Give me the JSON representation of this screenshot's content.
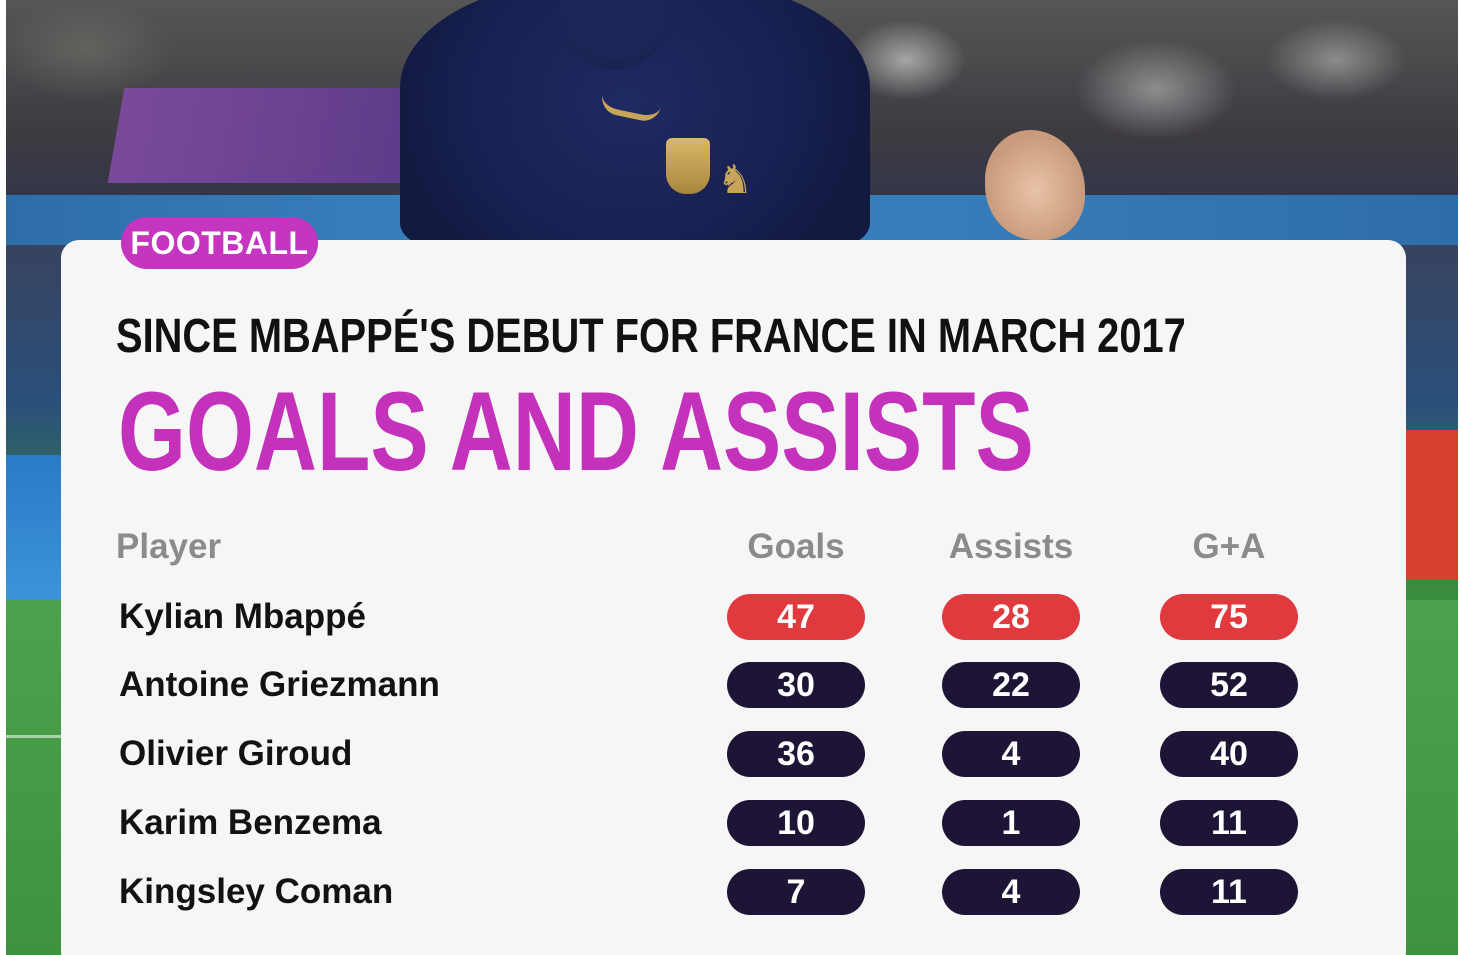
{
  "tag": "FOOTBALL",
  "subtitle": "SINCE MBAPPÉ'S DEBUT FOR FRANCE IN MARCH 2017",
  "title": "GOALS AND ASSISTS",
  "columns": {
    "player": "Player",
    "goals": "Goals",
    "assists": "Assists",
    "ga": "G+A"
  },
  "rows": [
    {
      "player": "Kylian Mbappé",
      "goals": "47",
      "assists": "28",
      "ga": "75",
      "highlight": true
    },
    {
      "player": "Antoine Griezmann",
      "goals": "30",
      "assists": "22",
      "ga": "52",
      "highlight": false
    },
    {
      "player": "Olivier Giroud",
      "goals": "36",
      "assists": "4",
      "ga": "40",
      "highlight": false
    },
    {
      "player": "Karim Benzema",
      "goals": "10",
      "assists": "1",
      "ga": "11",
      "highlight": false
    },
    {
      "player": "Kingsley Coman",
      "goals": "7",
      "assists": "4",
      "ga": "11",
      "highlight": false
    }
  ],
  "colors": {
    "accent": "#c432bb",
    "highlight_pill": "#e03a3e",
    "default_pill": "#1e1435",
    "card_background": "#f6f6f6"
  }
}
